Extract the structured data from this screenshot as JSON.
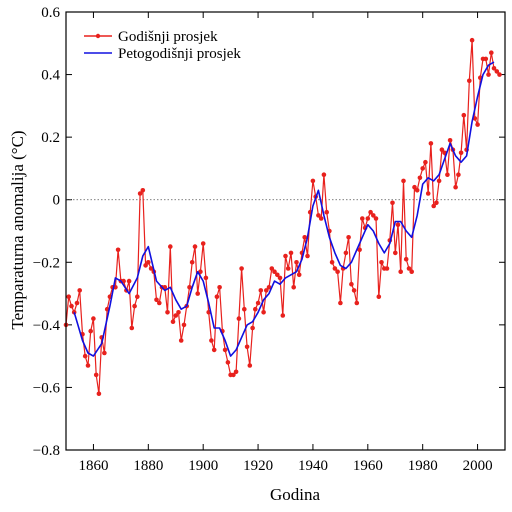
{
  "chart_data": {
    "type": "line",
    "xlabel": "Godina",
    "ylabel": "Temparaturna anomalija (°C)",
    "xlim": [
      1850,
      2010
    ],
    "ylim": [
      -0.8,
      0.6
    ],
    "x_ticks": [
      1860,
      1880,
      1900,
      1920,
      1940,
      1960,
      1980,
      2000
    ],
    "y_ticks": [
      -0.8,
      -0.6,
      -0.4,
      -0.2,
      0,
      0.2,
      0.4,
      0.6
    ],
    "reference_line": {
      "y": 0,
      "style": "dotted"
    },
    "legend_position": "top-left",
    "grid": false,
    "series": [
      {
        "name": "Godišnji prosjek",
        "color": "#e8211d",
        "marker": "circle",
        "x": [
          1850,
          1851,
          1852,
          1853,
          1854,
          1855,
          1856,
          1857,
          1858,
          1859,
          1860,
          1861,
          1862,
          1863,
          1864,
          1865,
          1866,
          1867,
          1868,
          1869,
          1870,
          1871,
          1872,
          1873,
          1874,
          1875,
          1876,
          1877,
          1878,
          1879,
          1880,
          1881,
          1882,
          1883,
          1884,
          1885,
          1886,
          1887,
          1888,
          1889,
          1890,
          1891,
          1892,
          1893,
          1894,
          1895,
          1896,
          1897,
          1898,
          1899,
          1900,
          1901,
          1902,
          1903,
          1904,
          1905,
          1906,
          1907,
          1908,
          1909,
          1910,
          1911,
          1912,
          1913,
          1914,
          1915,
          1916,
          1917,
          1918,
          1919,
          1920,
          1921,
          1922,
          1923,
          1924,
          1925,
          1926,
          1927,
          1928,
          1929,
          1930,
          1931,
          1932,
          1933,
          1934,
          1935,
          1936,
          1937,
          1938,
          1939,
          1940,
          1941,
          1942,
          1943,
          1944,
          1945,
          1946,
          1947,
          1948,
          1949,
          1950,
          1951,
          1952,
          1953,
          1954,
          1955,
          1956,
          1957,
          1958,
          1959,
          1960,
          1961,
          1962,
          1963,
          1964,
          1965,
          1966,
          1967,
          1968,
          1969,
          1970,
          1971,
          1972,
          1973,
          1974,
          1975,
          1976,
          1977,
          1978,
          1979,
          1980,
          1981,
          1982,
          1983,
          1984,
          1985,
          1986,
          1987,
          1988,
          1989,
          1990,
          1991,
          1992,
          1993,
          1994,
          1995,
          1996,
          1997,
          1998,
          1999,
          2000,
          2001,
          2002,
          2003,
          2004,
          2005,
          2006,
          2007,
          2008
        ],
        "values": [
          -0.4,
          -0.31,
          -0.34,
          -0.36,
          -0.33,
          -0.29,
          -0.43,
          -0.5,
          -0.53,
          -0.42,
          -0.38,
          -0.56,
          -0.62,
          -0.44,
          -0.49,
          -0.35,
          -0.31,
          -0.28,
          -0.28,
          -0.16,
          -0.26,
          -0.26,
          -0.29,
          -0.26,
          -0.41,
          -0.34,
          -0.31,
          0.02,
          0.03,
          -0.21,
          -0.2,
          -0.22,
          -0.23,
          -0.32,
          -0.33,
          -0.28,
          -0.28,
          -0.36,
          -0.15,
          -0.39,
          -0.37,
          -0.36,
          -0.45,
          -0.4,
          -0.34,
          -0.28,
          -0.2,
          -0.15,
          -0.3,
          -0.23,
          -0.14,
          -0.25,
          -0.36,
          -0.45,
          -0.48,
          -0.31,
          -0.28,
          -0.42,
          -0.48,
          -0.52,
          -0.56,
          -0.56,
          -0.55,
          -0.38,
          -0.22,
          -0.35,
          -0.47,
          -0.53,
          -0.41,
          -0.35,
          -0.33,
          -0.29,
          -0.36,
          -0.29,
          -0.28,
          -0.22,
          -0.23,
          -0.24,
          -0.25,
          -0.37,
          -0.18,
          -0.22,
          -0.17,
          -0.28,
          -0.2,
          -0.24,
          -0.17,
          -0.12,
          -0.18,
          -0.04,
          0.06,
          0.01,
          -0.05,
          -0.06,
          0.08,
          -0.04,
          -0.1,
          -0.2,
          -0.22,
          -0.23,
          -0.33,
          -0.22,
          -0.17,
          -0.12,
          -0.27,
          -0.29,
          -0.33,
          -0.16,
          -0.06,
          -0.09,
          -0.06,
          -0.04,
          -0.05,
          -0.06,
          -0.31,
          -0.2,
          -0.22,
          -0.22,
          -0.13,
          -0.01,
          -0.17,
          -0.08,
          -0.23,
          0.06,
          -0.19,
          -0.22,
          -0.23,
          0.04,
          0.03,
          0.07,
          0.1,
          0.12,
          0.02,
          0.18,
          -0.02,
          -0.01,
          0.06,
          0.16,
          0.15,
          0.08,
          0.19,
          0.16,
          0.04,
          0.08,
          0.15,
          0.27,
          0.16,
          0.38,
          0.51,
          0.26,
          0.24,
          0.39,
          0.45,
          0.45,
          0.4,
          0.47,
          0.42,
          0.41,
          0.4
        ]
      },
      {
        "name": "Petogodišnji prosjek",
        "color": "#1010e0",
        "x": [
          1853,
          1856,
          1858,
          1860,
          1863,
          1866,
          1868,
          1870,
          1873,
          1876,
          1878,
          1880,
          1883,
          1886,
          1888,
          1890,
          1892,
          1894,
          1896,
          1898,
          1900,
          1902,
          1904,
          1906,
          1908,
          1910,
          1912,
          1914,
          1916,
          1918,
          1920,
          1922,
          1924,
          1926,
          1928,
          1930,
          1932,
          1934,
          1936,
          1938,
          1940,
          1942,
          1944,
          1946,
          1948,
          1950,
          1952,
          1954,
          1956,
          1958,
          1960,
          1962,
          1964,
          1966,
          1968,
          1970,
          1972,
          1974,
          1976,
          1978,
          1980,
          1982,
          1984,
          1986,
          1988,
          1990,
          1992,
          1994,
          1996,
          1998,
          2000,
          2002,
          2004,
          2006
        ],
        "values": [
          -0.36,
          -0.45,
          -0.49,
          -0.5,
          -0.46,
          -0.34,
          -0.25,
          -0.26,
          -0.3,
          -0.25,
          -0.18,
          -0.15,
          -0.26,
          -0.29,
          -0.28,
          -0.32,
          -0.35,
          -0.34,
          -0.28,
          -0.23,
          -0.26,
          -0.33,
          -0.41,
          -0.41,
          -0.45,
          -0.5,
          -0.48,
          -0.44,
          -0.4,
          -0.39,
          -0.36,
          -0.32,
          -0.3,
          -0.26,
          -0.27,
          -0.25,
          -0.24,
          -0.23,
          -0.19,
          -0.12,
          -0.02,
          0.03,
          -0.05,
          -0.12,
          -0.17,
          -0.21,
          -0.22,
          -0.2,
          -0.16,
          -0.12,
          -0.08,
          -0.1,
          -0.14,
          -0.17,
          -0.14,
          -0.07,
          -0.07,
          -0.1,
          -0.12,
          -0.05,
          0.05,
          0.07,
          0.06,
          0.08,
          0.13,
          0.18,
          0.14,
          0.12,
          0.14,
          0.25,
          0.33,
          0.4,
          0.43,
          0.44
        ]
      }
    ]
  }
}
